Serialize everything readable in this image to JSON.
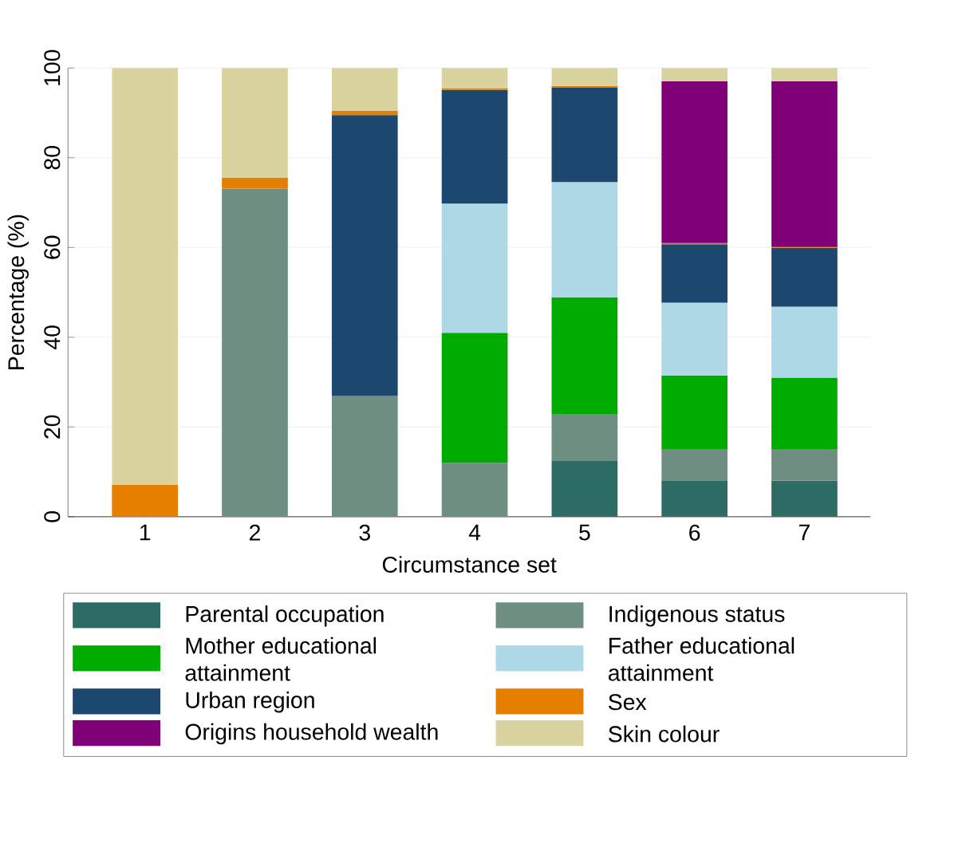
{
  "chart_data": {
    "type": "bar",
    "stacked": true,
    "xlabel": "Circumstance set",
    "ylabel": "Percentage (%)",
    "categories": [
      "1",
      "2",
      "3",
      "4",
      "5",
      "6",
      "7"
    ],
    "ylim": [
      0,
      100
    ],
    "yticks": [
      0,
      20,
      40,
      60,
      80,
      100
    ],
    "grid": "y",
    "legend": "bottom",
    "series": [
      {
        "name": "Parental occupation",
        "color": "#2d6c65",
        "values": [
          null,
          null,
          null,
          null,
          12.4,
          8.1,
          8
        ]
      },
      {
        "name": "Indigenous status",
        "color": "#6f8e82",
        "values": [
          null,
          73.1,
          26.9,
          12,
          10.5,
          7,
          7.1
        ]
      },
      {
        "name": "Mother educational attainment",
        "color": "#00ab00",
        "values": [
          null,
          null,
          null,
          29,
          26,
          16.4,
          15.9
        ]
      },
      {
        "name": "Father educational attainment",
        "color": "#add8e6",
        "values": [
          null,
          null,
          null,
          28.8,
          25.7,
          16.2,
          15.8
        ]
      },
      {
        "name": "Urban region",
        "color": "#1c476e",
        "values": [
          null,
          null,
          62.6,
          25.3,
          21,
          13,
          13.1
        ]
      },
      {
        "name": "Sex",
        "color": "#e67e00",
        "values": [
          7.1,
          2.4,
          1,
          0.4,
          0.4,
          0.3,
          0.2
        ]
      },
      {
        "name": "Origins household wealth",
        "color": "#800078",
        "values": [
          null,
          null,
          null,
          null,
          null,
          36,
          36.9
        ]
      },
      {
        "name": "Skin colour",
        "color": "#d9d39f",
        "values": [
          92.9,
          24.5,
          9.5,
          4.5,
          4,
          3,
          3
        ]
      }
    ]
  }
}
